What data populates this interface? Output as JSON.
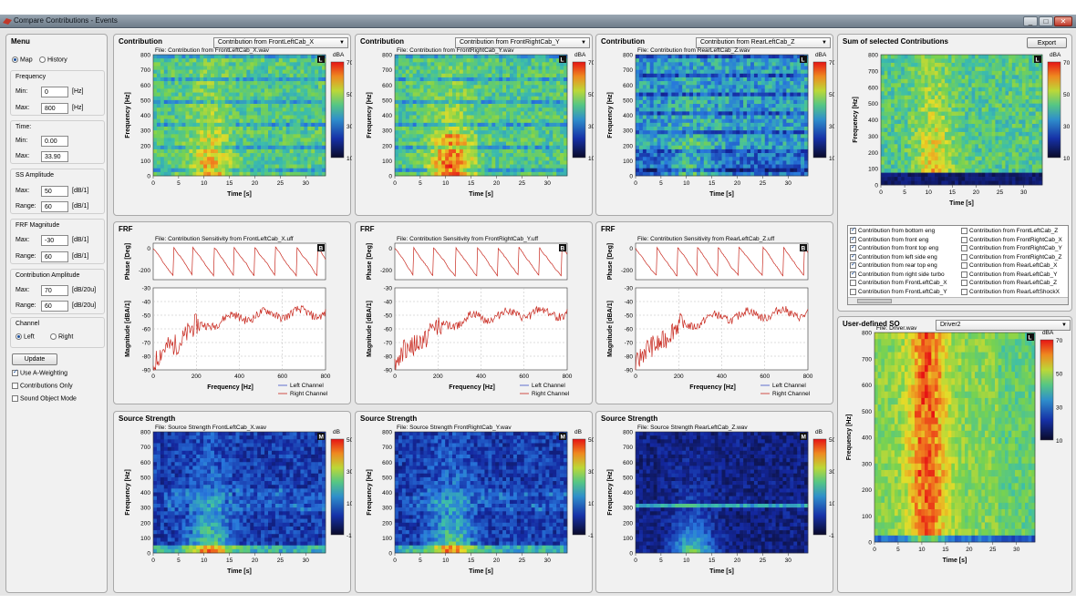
{
  "window": {
    "title": "Compare Contributions - Events",
    "min": "_",
    "max": "□",
    "close": "✕"
  },
  "menu": {
    "title": "Menu",
    "view_map": "Map",
    "view_history": "History",
    "frequency": {
      "label": "Frequency",
      "min_label": "Min:",
      "min": "0",
      "max_label": "Max:",
      "max": "800",
      "unit": "[Hz]"
    },
    "time": {
      "label": "Time:",
      "min_label": "Min:",
      "min": "0.00",
      "max_label": "Max:",
      "max": "33.90"
    },
    "ss_amplitude": {
      "label": "SS Amplitude",
      "max_label": "Max:",
      "max": "50",
      "range_label": "Range:",
      "range": "60",
      "unit": "[dB/1]"
    },
    "frf_magnitude": {
      "label": "FRF Magnitude",
      "max_label": "Max:",
      "max": "-30",
      "range_label": "Range:",
      "range": "60",
      "unit": "[dB/1]"
    },
    "contribution_amplitude": {
      "label": "Contribution Amplitude",
      "max_label": "Max:",
      "max": "70",
      "range_label": "Range:",
      "range": "60",
      "unit": "[dB/20u]"
    },
    "channel": {
      "label": "Channel",
      "left": "Left",
      "right": "Right"
    },
    "update": "Update",
    "use_a_weighting": "Use A-Weighting",
    "contributions_only": "Contributions Only",
    "sound_object_mode": "Sound Object Mode"
  },
  "contribution": {
    "title": "Contribution",
    "badge": "L",
    "cbar_unit": "dBA",
    "cbar_ticks": [
      "70",
      "50",
      "30",
      "10"
    ],
    "ylabel": "Frequency [Hz]",
    "xlabel": "Time [s]",
    "yticks": [
      "800",
      "700",
      "600",
      "500",
      "400",
      "300",
      "200",
      "100",
      "0"
    ],
    "xticks": [
      "0",
      "5",
      "10",
      "15",
      "20",
      "25",
      "30"
    ],
    "columns": [
      {
        "select": "Contribution from FrontLeftCab_X",
        "file": "File: Contribution from FrontLeftCab_X.wav"
      },
      {
        "select": "Contribution from FrontRightCab_Y",
        "file": "File: Contribution from FrontRightCab_Y.wav"
      },
      {
        "select": "Contribution from RearLeftCab_Z",
        "file": "File: Contribution from RearLeftCab_Z.wav"
      }
    ]
  },
  "frf": {
    "title": "FRF",
    "badge": "B",
    "phase_label": "Phase [Deg]",
    "phase_ticks": [
      "0",
      "-200"
    ],
    "mag_label": "Magnitude [dBA/1]",
    "mag_ticks": [
      "-30",
      "-40",
      "-50",
      "-60",
      "-70",
      "-80",
      "-90"
    ],
    "xlabel": "Frequency [Hz]",
    "xticks": [
      "0",
      "200",
      "400",
      "600",
      "800"
    ],
    "legend_left": "Left Channel",
    "legend_right": "Right Channel",
    "files": [
      "File: Contribution Sensitivity from FrontLeftCab_X.uff",
      "File: Contribution Sensitivity from FrontRightCab_Y.uff",
      "File: Contribution Sensitivity from RearLeftCab_Z.uff"
    ]
  },
  "source_strength": {
    "title": "Source Strength",
    "badge": "M",
    "cbar_unit": "dB",
    "cbar_ticks": [
      "50",
      "30",
      "10",
      "-10"
    ],
    "ylabel": "Frequency [Hz]",
    "xlabel": "Time [s]",
    "yticks": [
      "800",
      "700",
      "600",
      "500",
      "400",
      "300",
      "200",
      "100",
      "0"
    ],
    "xticks": [
      "0",
      "5",
      "10",
      "15",
      "20",
      "25",
      "30"
    ],
    "files": [
      "File: Source Strength FrontLeftCab_X.wav",
      "File: Source Strength FrontRightCab_Y.wav",
      "File: Source Strength RearLeftCab_Z.wav"
    ]
  },
  "sum": {
    "title": "Sum of selected Contributions",
    "export": "Export",
    "badge": "L",
    "cbar_unit": "dBA",
    "cbar_ticks": [
      "70",
      "50",
      "30",
      "10"
    ],
    "ylabel": "Frequency [Hz]",
    "xlabel": "Time [s]",
    "yticks": [
      "800",
      "700",
      "600",
      "500",
      "400",
      "300",
      "200",
      "100",
      "0"
    ],
    "xticks": [
      "0",
      "5",
      "10",
      "15",
      "20",
      "25",
      "30"
    ],
    "list_left": [
      {
        "label": "Contribution from bottom eng",
        "checked": true
      },
      {
        "label": "Contribution from front eng",
        "checked": true
      },
      {
        "label": "Contribution from front top eng",
        "checked": true
      },
      {
        "label": "Contribution from left side eng",
        "checked": true
      },
      {
        "label": "Contribution from rear top eng",
        "checked": true
      },
      {
        "label": "Contribution from right side turbo",
        "checked": true
      },
      {
        "label": "Contribution from FrontLeftCab_X",
        "checked": false
      },
      {
        "label": "Contribution from FrontLeftCab_Y",
        "checked": false
      }
    ],
    "list_right": [
      {
        "label": "Contribution from FrontLeftCab_Z",
        "checked": false
      },
      {
        "label": "Contribution from FrontRightCab_X",
        "checked": false
      },
      {
        "label": "Contribution from FrontRightCab_Y",
        "checked": false
      },
      {
        "label": "Contribution from FrontRightCab_Z",
        "checked": false
      },
      {
        "label": "Contribution from RearLeftCab_X",
        "checked": false
      },
      {
        "label": "Contribution from RearLeftCab_Y",
        "checked": false
      },
      {
        "label": "Contribution from RearLeftCab_Z",
        "checked": false
      },
      {
        "label": "Contribution from RearLeftShockX",
        "checked": false
      }
    ]
  },
  "user_so": {
    "title": "User-defined SO",
    "select": "Driver2",
    "file": "File: Driver.wav",
    "badge": "L",
    "cbar_unit": "dBA",
    "cbar_ticks": [
      "70",
      "50",
      "30",
      "10"
    ],
    "ylabel": "Frequency [Hz]",
    "xlabel": "Time [s]",
    "yticks": [
      "800",
      "700",
      "600",
      "500",
      "400",
      "300",
      "200",
      "100",
      "0"
    ],
    "xticks": [
      "0",
      "5",
      "10",
      "15",
      "20",
      "25",
      "30"
    ]
  },
  "colors": {
    "left_channel": "#3b4fc4",
    "right_channel": "#c8281e",
    "panel_bg": "#f1f1f1",
    "title_bar": "#7c8a98"
  }
}
